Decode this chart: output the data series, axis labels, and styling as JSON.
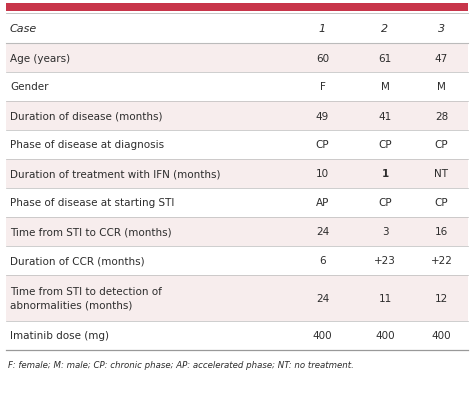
{
  "header_row": [
    "Case",
    "1",
    "2",
    "3"
  ],
  "rows": [
    [
      "Age (years)",
      "60",
      "61",
      "47"
    ],
    [
      "Gender",
      "F",
      "M",
      "M"
    ],
    [
      "Duration of disease (months)",
      "49",
      "41",
      "28"
    ],
    [
      "Phase of disease at diagnosis",
      "CP",
      "CP",
      "CP"
    ],
    [
      "Duration of treatment with IFN (months)",
      "10",
      "1",
      "NT"
    ],
    [
      "Phase of disease at starting STI",
      "AP",
      "CP",
      "CP"
    ],
    [
      "Time from STI to CCR (months)",
      "24",
      "3",
      "16"
    ],
    [
      "Duration of CCR (months)",
      "6",
      "+23",
      "+22"
    ],
    [
      "Time from STI to detection of\nabnormalities (months)",
      "24",
      "11",
      "12"
    ],
    [
      "Imatinib dose (mg)",
      "400",
      "400",
      "400"
    ]
  ],
  "footer": "F: female; M: male; CP: chronic phase; AP: accelerated phase; NT: no treatment.",
  "top_bar_color": "#c8354a",
  "shaded_row_color": "#f7eded",
  "white_row_color": "#ffffff",
  "header_bg_color": "#ffffff",
  "text_color": "#2d2d2d",
  "line_color": "#bbbbbb",
  "bold_row": 4,
  "bold_col": 2
}
